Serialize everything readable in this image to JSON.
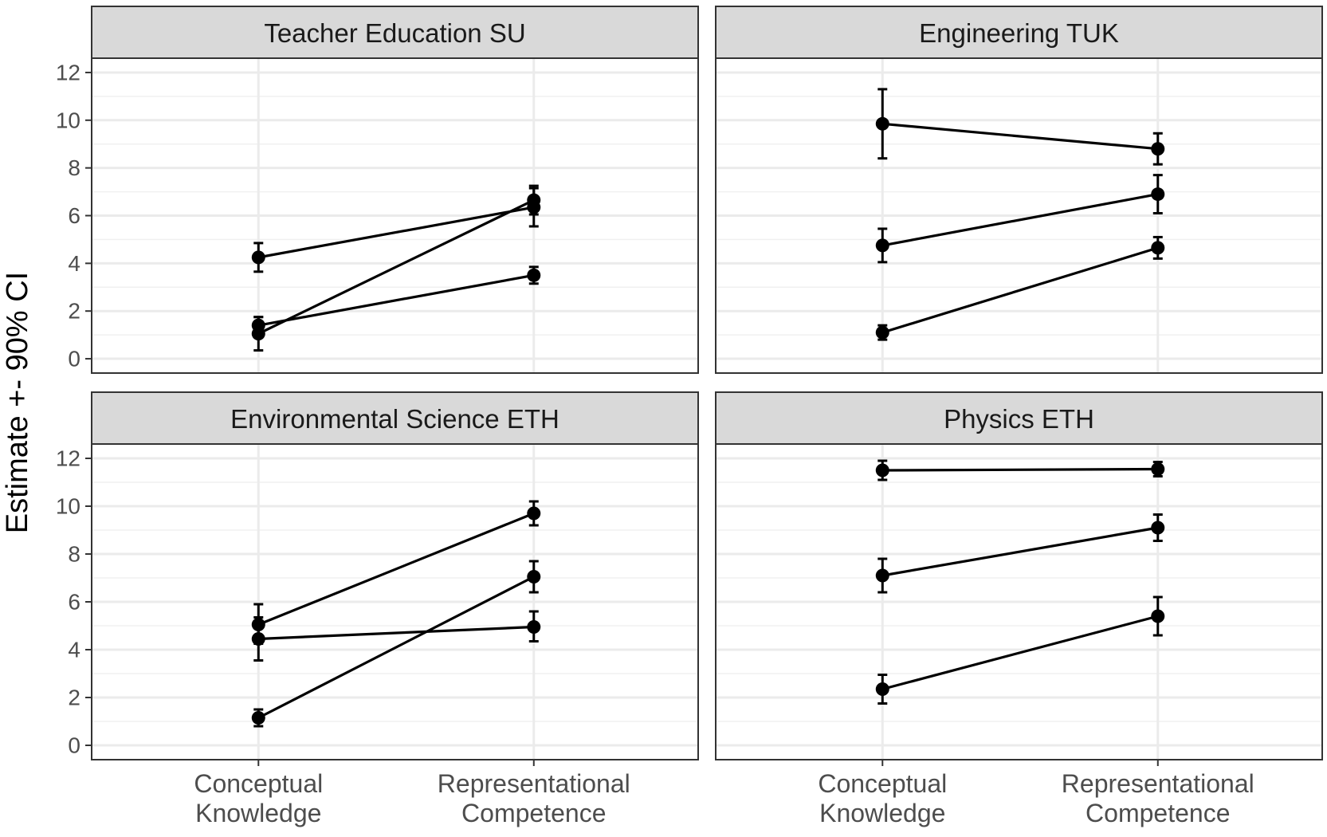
{
  "chart_data": {
    "type": "line",
    "ylabel": "Estimate +- 90% CI",
    "xlabel": "",
    "ylim": [
      -0.6,
      12.6
    ],
    "yticks": [
      0,
      2,
      4,
      6,
      8,
      10,
      12
    ],
    "categories": [
      [
        "Conceptual",
        "Knowledge"
      ],
      [
        "Representational",
        "Competence"
      ]
    ],
    "grid": true,
    "panels": [
      {
        "title": "Teacher Education SU",
        "series": [
          {
            "points": [
              {
                "x": 0,
                "y": 4.25,
                "lo": 3.65,
                "hi": 4.85
              },
              {
                "x": 1,
                "y": 6.35,
                "lo": 5.55,
                "hi": 7.15
              }
            ]
          },
          {
            "points": [
              {
                "x": 0,
                "y": 1.05,
                "lo": 0.35,
                "hi": 1.75
              },
              {
                "x": 1,
                "y": 6.65,
                "lo": 6.05,
                "hi": 7.25
              }
            ]
          },
          {
            "points": [
              {
                "x": 0,
                "y": 1.4,
                "lo": 1.05,
                "hi": 1.75
              },
              {
                "x": 1,
                "y": 3.5,
                "lo": 3.15,
                "hi": 3.85
              }
            ]
          }
        ]
      },
      {
        "title": "Engineering TUK",
        "series": [
          {
            "points": [
              {
                "x": 0,
                "y": 9.85,
                "lo": 8.4,
                "hi": 11.3
              },
              {
                "x": 1,
                "y": 8.8,
                "lo": 8.15,
                "hi": 9.45
              }
            ]
          },
          {
            "points": [
              {
                "x": 0,
                "y": 4.75,
                "lo": 4.05,
                "hi": 5.45
              },
              {
                "x": 1,
                "y": 6.9,
                "lo": 6.1,
                "hi": 7.7
              }
            ]
          },
          {
            "points": [
              {
                "x": 0,
                "y": 1.1,
                "lo": 0.8,
                "hi": 1.4
              },
              {
                "x": 1,
                "y": 4.65,
                "lo": 4.2,
                "hi": 5.1
              }
            ]
          }
        ]
      },
      {
        "title": "Environmental Science ETH",
        "series": [
          {
            "points": [
              {
                "x": 0,
                "y": 5.05,
                "lo": 4.25,
                "hi": 5.9
              },
              {
                "x": 1,
                "y": 9.7,
                "lo": 9.2,
                "hi": 10.2
              }
            ]
          },
          {
            "points": [
              {
                "x": 0,
                "y": 4.45,
                "lo": 3.55,
                "hi": 5.35
              },
              {
                "x": 1,
                "y": 4.95,
                "lo": 4.35,
                "hi": 5.6
              }
            ]
          },
          {
            "points": [
              {
                "x": 0,
                "y": 1.15,
                "lo": 0.8,
                "hi": 1.5
              },
              {
                "x": 1,
                "y": 7.05,
                "lo": 6.4,
                "hi": 7.7
              }
            ]
          }
        ]
      },
      {
        "title": "Physics ETH",
        "series": [
          {
            "points": [
              {
                "x": 0,
                "y": 11.5,
                "lo": 11.1,
                "hi": 11.9
              },
              {
                "x": 1,
                "y": 11.55,
                "lo": 11.25,
                "hi": 11.85
              }
            ]
          },
          {
            "points": [
              {
                "x": 0,
                "y": 7.1,
                "lo": 6.4,
                "hi": 7.8
              },
              {
                "x": 1,
                "y": 9.1,
                "lo": 8.55,
                "hi": 9.65
              }
            ]
          },
          {
            "points": [
              {
                "x": 0,
                "y": 2.35,
                "lo": 1.75,
                "hi": 2.95
              },
              {
                "x": 1,
                "y": 5.4,
                "lo": 4.6,
                "hi": 6.2
              }
            ]
          }
        ]
      }
    ]
  }
}
